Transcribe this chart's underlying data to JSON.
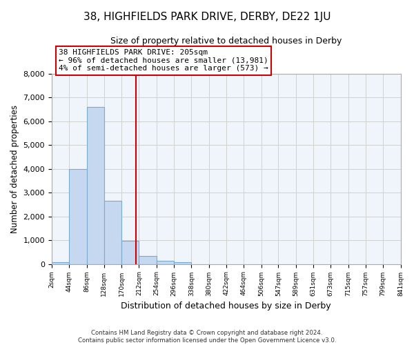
{
  "title": "38, HIGHFIELDS PARK DRIVE, DERBY, DE22 1JU",
  "subtitle": "Size of property relative to detached houses in Derby",
  "xlabel": "Distribution of detached houses by size in Derby",
  "ylabel": "Number of detached properties",
  "footer_line1": "Contains HM Land Registry data © Crown copyright and database right 2024.",
  "footer_line2": "Contains public sector information licensed under the Open Government Licence v3.0.",
  "bin_edges": [
    2,
    44,
    86,
    128,
    170,
    212,
    254,
    296,
    338,
    380,
    422,
    464,
    506,
    547,
    589,
    631,
    673,
    715,
    757,
    799,
    841
  ],
  "bin_values": [
    70,
    4000,
    6600,
    2650,
    980,
    330,
    130,
    70,
    0,
    0,
    0,
    0,
    0,
    0,
    0,
    0,
    0,
    0,
    0,
    0
  ],
  "property_size": 205,
  "annotation_title": "38 HIGHFIELDS PARK DRIVE: 205sqm",
  "annotation_line1": "← 96% of detached houses are smaller (13,981)",
  "annotation_line2": "4% of semi-detached houses are larger (573) →",
  "vline_color": "#cc0000",
  "bar_facecolor": "#c5d8ef",
  "bar_edgecolor": "#7aabcc",
  "annotation_box_edgecolor": "#cc0000",
  "annotation_box_facecolor": "#ffffff",
  "grid_color": "#d0d0d0",
  "background_color": "#ffffff",
  "plot_bg_color": "#f0f4fb",
  "ylim": [
    0,
    8000
  ],
  "yticks": [
    0,
    1000,
    2000,
    3000,
    4000,
    5000,
    6000,
    7000,
    8000
  ]
}
